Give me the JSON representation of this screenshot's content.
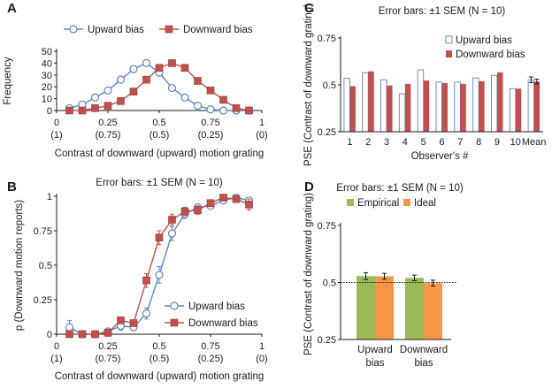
{
  "colors": {
    "blue": "#5b84c4",
    "red": "#c0504d",
    "green": "#9bbb59",
    "orange": "#f79646",
    "axis": "#1a1a1a"
  },
  "icons": {
    "upward": "open-circle",
    "downward": "filled-square"
  },
  "chart_data": [
    {
      "panel": "A",
      "type": "line",
      "title": "",
      "xlabel": "Contrast of downward (upward) motion grating",
      "ylabel": "Frequency",
      "xlim": [
        0,
        1
      ],
      "ylim": [
        0,
        50
      ],
      "yticks": [
        0,
        10,
        20,
        30,
        40,
        50
      ],
      "xticks": [
        {
          "v": 0,
          "top": "0",
          "bot": "(1)"
        },
        {
          "v": 0.25,
          "top": "0.25",
          "bot": "(0.75)"
        },
        {
          "v": 0.5,
          "top": "0.5",
          "bot": "(0.5)"
        },
        {
          "v": 0.75,
          "top": "0.75",
          "bot": "(0.25)"
        },
        {
          "v": 1,
          "top": "1",
          "bot": "(0)"
        }
      ],
      "legend": "top",
      "series": [
        {
          "name": "Upward bias",
          "marker": "circle",
          "x": [
            0.0625,
            0.125,
            0.1875,
            0.25,
            0.3125,
            0.375,
            0.4375,
            0.5,
            0.5625,
            0.625,
            0.6875,
            0.75,
            0.8125,
            0.875,
            0.9375
          ],
          "y": [
            2,
            5,
            11,
            17,
            26,
            35,
            40,
            32,
            19,
            11,
            4,
            1,
            0,
            0,
            0
          ]
        },
        {
          "name": "Downward bias",
          "marker": "square",
          "x": [
            0.0625,
            0.125,
            0.1875,
            0.25,
            0.3125,
            0.375,
            0.4375,
            0.5,
            0.5625,
            0.625,
            0.6875,
            0.75,
            0.8125,
            0.875,
            0.9375
          ],
          "y": [
            0,
            0,
            2,
            4,
            8,
            16,
            26,
            36,
            40,
            36,
            25,
            17,
            9,
            2,
            0
          ]
        }
      ]
    },
    {
      "panel": "B",
      "type": "line",
      "title": "Error bars: ±1 SEM (N = 10)",
      "xlabel": "Contrast of downward (upward) motion grating",
      "ylabel": "p (Downward motion  reports)",
      "xlim": [
        0,
        1
      ],
      "ylim": [
        0,
        1
      ],
      "yticks": [
        {
          "v": 0,
          "l": "0"
        },
        {
          "v": 0.25,
          "l": "0.25"
        },
        {
          "v": 0.5,
          "l": "0.5"
        },
        {
          "v": 0.75,
          "l": "0.75"
        },
        {
          "v": 1,
          "l": "1"
        }
      ],
      "xticks": [
        {
          "v": 0,
          "top": "0",
          "bot": "(1)"
        },
        {
          "v": 0.25,
          "top": "0.25",
          "bot": "(0.75)"
        },
        {
          "v": 0.5,
          "top": "0.5",
          "bot": "(0.5)"
        },
        {
          "v": 0.75,
          "top": "0.75",
          "bot": "(0.25)"
        },
        {
          "v": 1,
          "top": "1",
          "bot": "(0)"
        }
      ],
      "legend": "lower-right",
      "series": [
        {
          "name": "Upward bias",
          "marker": "circle",
          "x": [
            0.0625,
            0.125,
            0.1875,
            0.25,
            0.3125,
            0.375,
            0.4375,
            0.5,
            0.5625,
            0.625,
            0.6875,
            0.75,
            0.8125,
            0.875,
            0.9375
          ],
          "y": [
            0.05,
            0.0,
            0.0,
            0.02,
            0.06,
            0.05,
            0.15,
            0.43,
            0.73,
            0.87,
            0.92,
            0.93,
            0.97,
            0.99,
            0.97
          ],
          "err": [
            0.05,
            0.0,
            0.0,
            0.02,
            0.03,
            0.02,
            0.04,
            0.06,
            0.05,
            0.03,
            0.02,
            0.02,
            0.02,
            0.01,
            0.02
          ]
        },
        {
          "name": "Downward bias",
          "marker": "square",
          "x": [
            0.0625,
            0.125,
            0.1875,
            0.25,
            0.3125,
            0.375,
            0.4375,
            0.5,
            0.5625,
            0.625,
            0.6875,
            0.75,
            0.8125,
            0.875,
            0.9375
          ],
          "y": [
            0.0,
            0.0,
            0.0,
            0.01,
            0.1,
            0.08,
            0.39,
            0.7,
            0.83,
            0.89,
            0.9,
            0.95,
            0.99,
            0.98,
            0.94
          ],
          "err": [
            0.0,
            0.0,
            0.0,
            0.01,
            0.02,
            0.02,
            0.05,
            0.05,
            0.04,
            0.03,
            0.03,
            0.02,
            0.01,
            0.02,
            0.04
          ]
        }
      ]
    },
    {
      "panel": "C",
      "type": "bar",
      "title": "Error bars: ±1 SEM (N = 10)",
      "xlabel": "Observer's #",
      "ylabel": "PSE (Contrast of downward grating)",
      "ylim": [
        0.25,
        0.75
      ],
      "yticks": [
        {
          "v": 0.25,
          "l": "0.25"
        },
        {
          "v": 0.5,
          "l": "0.5"
        },
        {
          "v": 0.75,
          "l": "0.75"
        }
      ],
      "categories": [
        "1",
        "2",
        "3",
        "4",
        "5",
        "6",
        "7",
        "8",
        "9",
        "10",
        "Mean"
      ],
      "legend": "top-right",
      "series": [
        {
          "name": "Upward bias",
          "style": "outline",
          "values": [
            0.535,
            0.565,
            0.527,
            0.452,
            0.58,
            0.515,
            0.515,
            0.537,
            0.55,
            0.48,
            0.527
          ],
          "err": [
            0,
            0,
            0,
            0,
            0,
            0,
            0,
            0,
            0,
            0,
            0.015
          ]
        },
        {
          "name": "Downward bias",
          "style": "filled",
          "values": [
            0.493,
            0.572,
            0.497,
            0.505,
            0.523,
            0.51,
            0.505,
            0.52,
            0.567,
            0.48,
            0.518
          ],
          "err": [
            0,
            0,
            0,
            0,
            0,
            0,
            0,
            0,
            0,
            0,
            0.013
          ]
        }
      ]
    },
    {
      "panel": "D",
      "type": "bar",
      "title": "Error bars: ±1 SEM (N = 10)",
      "xlabel": "",
      "ylabel": "PSE (Contrast of downward grating)",
      "ylim": [
        0.25,
        0.75
      ],
      "yticks": [
        {
          "v": 0.25,
          "l": "0.25"
        },
        {
          "v": 0.5,
          "l": "0.5"
        },
        {
          "v": 0.75,
          "l": "0.75"
        }
      ],
      "reference_line": 0.5,
      "categories": [
        [
          "Upward",
          "bias"
        ],
        [
          "Downward",
          "bias"
        ]
      ],
      "legend": "top",
      "series": [
        {
          "name": "Empirical",
          "values": [
            0.528,
            0.52
          ],
          "err": [
            0.015,
            0.012
          ]
        },
        {
          "name": "Ideal",
          "values": [
            0.527,
            0.497
          ],
          "err": [
            0.013,
            0.013
          ]
        }
      ]
    }
  ]
}
